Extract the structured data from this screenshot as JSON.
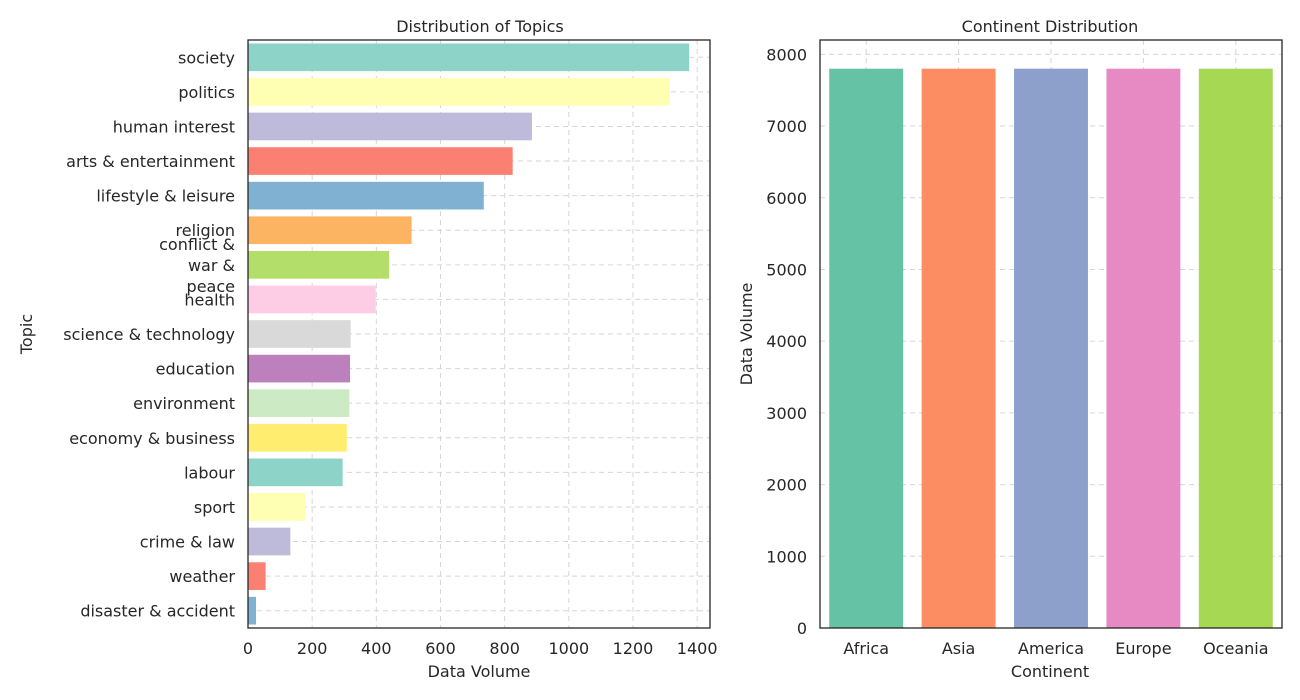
{
  "chart_data": [
    {
      "type": "bar",
      "orientation": "horizontal",
      "title": "Distribution of Topics",
      "xlabel": "Data Volume",
      "ylabel": "Topic",
      "xlim": [
        0,
        1440
      ],
      "xticks": [
        0,
        200,
        400,
        600,
        800,
        1000,
        1200,
        1400
      ],
      "grid": true,
      "categories": [
        "society",
        "politics",
        "human interest",
        "arts & entertainment",
        "lifestyle & leisure",
        "religion",
        "conflict & war & peace",
        "health",
        "science & technology",
        "education",
        "environment",
        "economy & business",
        "labour",
        "sport",
        "crime & law",
        "weather",
        "disaster & accident"
      ],
      "category_lines": [
        [
          "society"
        ],
        [
          "politics"
        ],
        [
          "human interest"
        ],
        [
          "arts & entertainment"
        ],
        [
          "lifestyle & leisure"
        ],
        [
          "religion"
        ],
        [
          "conflict &",
          "war &",
          "peace"
        ],
        [
          "health"
        ],
        [
          "science & technology"
        ],
        [
          "education"
        ],
        [
          "environment"
        ],
        [
          "economy & business"
        ],
        [
          "labour"
        ],
        [
          "sport"
        ],
        [
          "crime & law"
        ],
        [
          "weather"
        ],
        [
          "disaster & accident"
        ]
      ],
      "values": [
        1375,
        1315,
        885,
        825,
        735,
        510,
        440,
        398,
        320,
        318,
        316,
        308,
        295,
        180,
        132,
        55,
        25
      ],
      "colors": [
        "#8dd3c7",
        "#ffffb3",
        "#bebada",
        "#fb8072",
        "#80b1d3",
        "#fdb462",
        "#b3de69",
        "#fccde5",
        "#d9d9d9",
        "#bc80bd",
        "#ccebc5",
        "#ffed6f",
        "#8dd3c7",
        "#ffffb3",
        "#bebada",
        "#fb8072",
        "#80b1d3"
      ]
    },
    {
      "type": "bar",
      "orientation": "vertical",
      "title": "Continent Distribution",
      "xlabel": "Continent",
      "ylabel": "Data Volume",
      "ylim": [
        0,
        8200
      ],
      "yticks": [
        0,
        1000,
        2000,
        3000,
        4000,
        5000,
        6000,
        7000,
        8000
      ],
      "grid": true,
      "categories": [
        "Africa",
        "Asia",
        "America",
        "Europe",
        "Oceania"
      ],
      "values": [
        7800,
        7800,
        7800,
        7800,
        7800
      ],
      "colors": [
        "#66c2a5",
        "#fc8d62",
        "#8da0cb",
        "#e78ac3",
        "#a6d854"
      ]
    }
  ]
}
